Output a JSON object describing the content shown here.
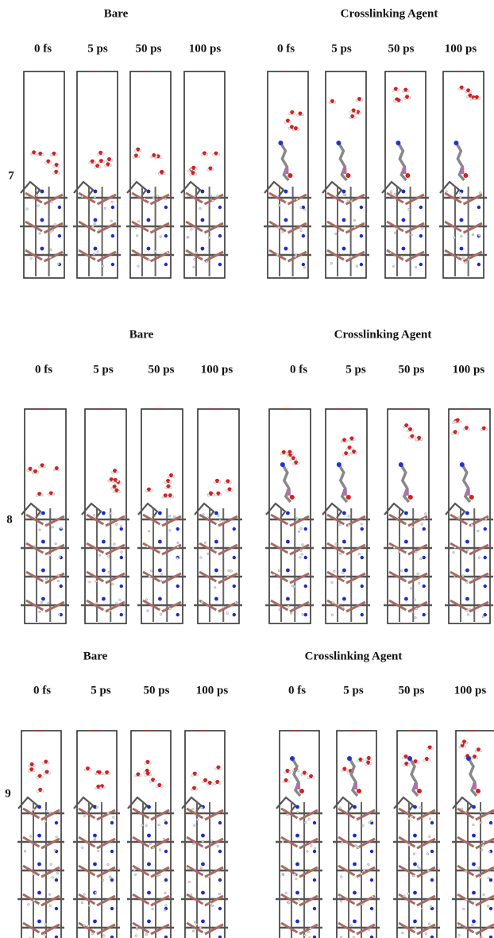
{
  "panels": [
    {
      "label": "7",
      "groups": [
        {
          "title": "Bare",
          "times": [
            "0 fs",
            "5 ps",
            "50 ps",
            "100 ps"
          ]
        },
        {
          "title": "Crosslinking Agent",
          "times": [
            "0 fs",
            "5 ps",
            "50 ps",
            "100 ps"
          ]
        }
      ]
    },
    {
      "label": "8",
      "groups": [
        {
          "title": "Bare",
          "times": [
            "0 fs",
            "5 ps",
            "50 ps",
            "100 ps"
          ]
        },
        {
          "title": "Crosslinking Agent",
          "times": [
            "0 fs",
            "5 ps",
            "50 ps",
            "100 ps"
          ]
        }
      ]
    },
    {
      "label": "9",
      "groups": [
        {
          "title": "Bare",
          "times": [
            "0 fs",
            "5 ps",
            "50 ps",
            "100 ps"
          ]
        },
        {
          "title": "Crosslinking Agent",
          "times": [
            "0 fs",
            "5 ps",
            "50 ps",
            "100 ps"
          ]
        }
      ]
    }
  ]
}
